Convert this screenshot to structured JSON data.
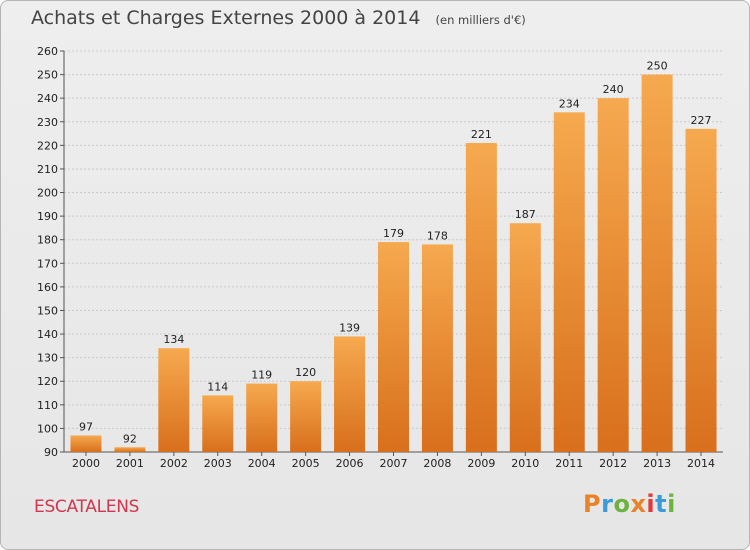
{
  "header": {
    "title": "Achats et Charges Externes 2000 à 2014",
    "subtitle": "(en milliers d'€)"
  },
  "footer": {
    "commune": "ESCATALENS",
    "logo_letters": [
      "P",
      "r",
      "o",
      "x",
      "i",
      "t",
      "i"
    ],
    "logo_colors": [
      "#e8832a",
      "#3b9ad8",
      "#6db33f",
      "#e8832a",
      "#e23a3a",
      "#3b9ad8",
      "#6db33f"
    ]
  },
  "colors": {
    "bar_light": "#f6a94f",
    "bar_dark": "#d86f1c",
    "grid": "#c9c9c9",
    "axis": "#555555"
  },
  "chart_data": {
    "type": "bar",
    "categories": [
      "2000",
      "2001",
      "2002",
      "2003",
      "2004",
      "2005",
      "2006",
      "2007",
      "2008",
      "2009",
      "2010",
      "2011",
      "2012",
      "2013",
      "2014"
    ],
    "values": [
      97,
      92,
      134,
      114,
      119,
      120,
      139,
      179,
      178,
      221,
      187,
      234,
      240,
      250,
      227
    ],
    "ylim": [
      90,
      260
    ],
    "yticks": [
      90,
      100,
      110,
      120,
      130,
      140,
      150,
      160,
      170,
      180,
      190,
      200,
      210,
      220,
      230,
      240,
      250,
      260
    ],
    "grid": true,
    "legend": "none"
  }
}
